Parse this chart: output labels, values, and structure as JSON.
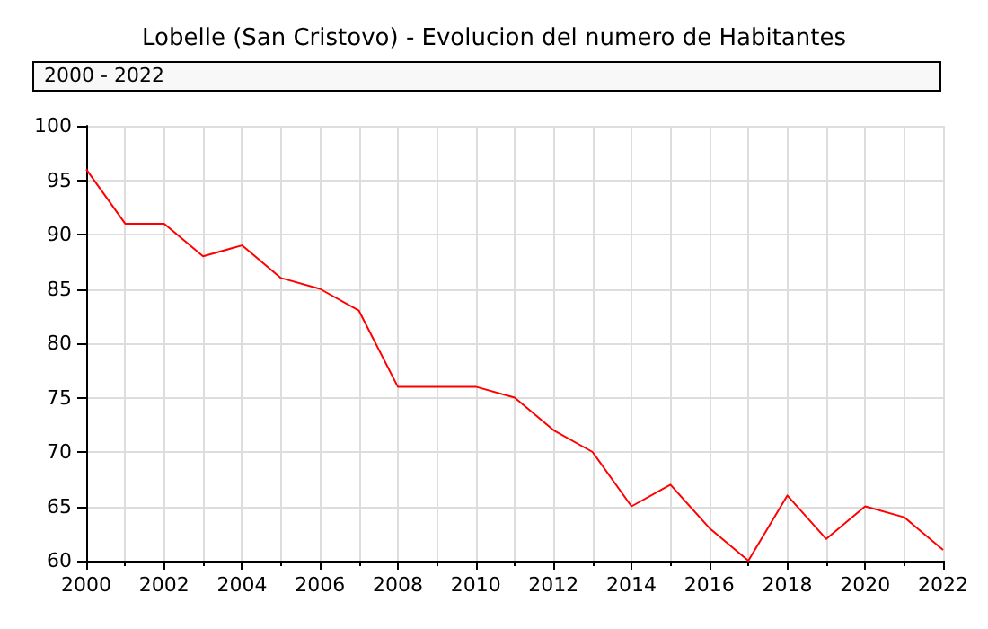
{
  "chart_data": {
    "type": "line",
    "title": "Lobelle (San Cristovo) - Evolucion del numero de Habitantes",
    "annotations": [
      "2000 - 2022"
    ],
    "x": [
      2000,
      2001,
      2002,
      2003,
      2004,
      2005,
      2006,
      2007,
      2008,
      2009,
      2010,
      2011,
      2012,
      2013,
      2014,
      2015,
      2016,
      2017,
      2018,
      2019,
      2020,
      2021,
      2022
    ],
    "series": [
      {
        "color": "#ff0000",
        "values": [
          96,
          91,
          91,
          88,
          89,
          86,
          85,
          83,
          76,
          76,
          76,
          75,
          72,
          70,
          65,
          67,
          63,
          60,
          66,
          62,
          65,
          64,
          61
        ]
      }
    ],
    "xlim": [
      2000,
      2022
    ],
    "xticks": [
      2000,
      2002,
      2004,
      2006,
      2008,
      2010,
      2012,
      2014,
      2016,
      2018,
      2020,
      2022
    ],
    "ylim": [
      60,
      100
    ],
    "yticks": [
      60,
      65,
      70,
      75,
      80,
      85,
      90,
      95,
      100
    ],
    "grid": true,
    "marker": "none",
    "line_style": "solid"
  }
}
